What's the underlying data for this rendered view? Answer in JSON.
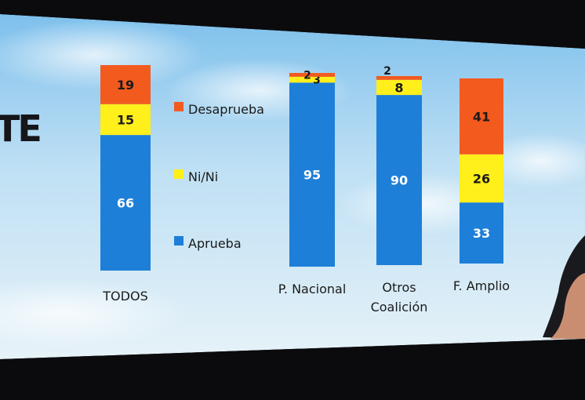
{
  "logo_text": "TE",
  "chart_data": {
    "type": "bar",
    "stacked": true,
    "categories": [
      "TODOS",
      "P. Nacional",
      "Otros Coalición",
      "F. Amplio"
    ],
    "category_lines": [
      [
        "TODOS"
      ],
      [
        "P. Nacional"
      ],
      [
        "Otros",
        "Coalición"
      ],
      [
        "F. Amplio"
      ]
    ],
    "series": [
      {
        "name": "Aprueba",
        "values": [
          66,
          95,
          90,
          33
        ],
        "color": "#1e7fd8"
      },
      {
        "name": "Ni/Ni",
        "values": [
          15,
          3,
          8,
          26
        ],
        "color": "#ffef1a"
      },
      {
        "name": "Desaprueba",
        "values": [
          19,
          2,
          2,
          41
        ],
        "color": "#f35a1e"
      }
    ],
    "legend": [
      "Desaprueba",
      "Ni/Ni",
      "Aprueba"
    ],
    "legend_placement": "left, between first and second bar",
    "ylim": [
      0,
      100
    ],
    "title": "",
    "xlabel": "",
    "ylabel": ""
  }
}
